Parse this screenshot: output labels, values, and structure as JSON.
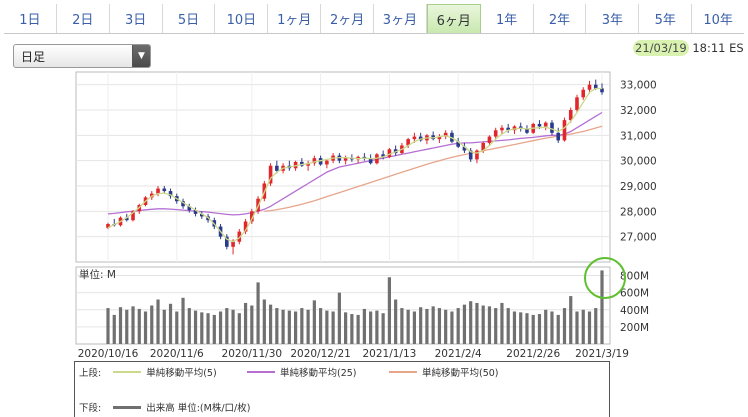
{
  "tabs": [
    "1日",
    "2日",
    "3日",
    "5日",
    "10日",
    "1ヶ月",
    "2ヶ月",
    "3ヶ月",
    "6ヶ月",
    "1年",
    "2年",
    "3年",
    "5年",
    "10年"
  ],
  "active_tab": "6ヶ月",
  "period_select": {
    "value": "日足"
  },
  "timestamp": {
    "date": "21/03/19",
    "time": "18:11 ES"
  },
  "colors": {
    "up": "#e0282c",
    "down": "#2a3a8c",
    "ma5": "#cdd98a",
    "ma25": "#b56fd3",
    "ma50": "#e7a58c",
    "volume": "#707070",
    "annotation": "#5fbf2f"
  },
  "legend": {
    "upper_label": "上段:",
    "lower_label": "下段:",
    "ma5": "単純移動平均(5)",
    "ma25": "単純移動平均(25)",
    "ma50": "単純移動平均(50)",
    "volume": "出来高 単位:(M株/口/枚)"
  },
  "chart_data": [
    {
      "type": "line",
      "subtype": "candlestick",
      "y_ticks": [
        "33,000",
        "32,000",
        "31,000",
        "30,000",
        "29,000",
        "28,000",
        "27,000"
      ],
      "ylim": [
        26000,
        33500
      ],
      "candles": [
        [
          27350,
          27550,
          27300,
          27500
        ],
        [
          27500,
          27700,
          27400,
          27450
        ],
        [
          27450,
          27800,
          27400,
          27750
        ],
        [
          27750,
          27900,
          27600,
          27650
        ],
        [
          27650,
          28050,
          27600,
          28000
        ],
        [
          28000,
          28300,
          27900,
          28250
        ],
        [
          28250,
          28600,
          28200,
          28550
        ],
        [
          28550,
          28800,
          28450,
          28700
        ],
        [
          28700,
          29000,
          28600,
          28900
        ],
        [
          28900,
          29000,
          28700,
          28800
        ],
        [
          28800,
          28900,
          28500,
          28600
        ],
        [
          28600,
          28700,
          28300,
          28400
        ],
        [
          28400,
          28500,
          28100,
          28200
        ],
        [
          28200,
          28300,
          27950,
          28050
        ],
        [
          28050,
          28150,
          27800,
          27900
        ],
        [
          27900,
          28000,
          27700,
          27800
        ],
        [
          27800,
          27900,
          27550,
          27650
        ],
        [
          27650,
          27750,
          27300,
          27400
        ],
        [
          27400,
          27500,
          26900,
          27000
        ],
        [
          27000,
          27100,
          26500,
          26600
        ],
        [
          26600,
          26900,
          26300,
          26800
        ],
        [
          26800,
          27300,
          26700,
          27200
        ],
        [
          27200,
          27700,
          27100,
          27600
        ],
        [
          27600,
          28100,
          27500,
          28000
        ],
        [
          28000,
          28600,
          27900,
          28500
        ],
        [
          28500,
          29200,
          28400,
          29100
        ],
        [
          29100,
          29900,
          29000,
          29800
        ],
        [
          29800,
          30000,
          29500,
          29600
        ],
        [
          29600,
          29900,
          29500,
          29800
        ],
        [
          29800,
          30000,
          29600,
          29700
        ],
        [
          29700,
          30000,
          29600,
          29950
        ],
        [
          29950,
          30100,
          29750,
          29800
        ],
        [
          29800,
          30000,
          29600,
          29900
        ],
        [
          29900,
          30200,
          29800,
          30100
        ],
        [
          30100,
          30200,
          29800,
          29850
        ],
        [
          29850,
          30050,
          29700,
          30000
        ],
        [
          30000,
          30300,
          29900,
          30200
        ],
        [
          30200,
          30300,
          29900,
          30000
        ],
        [
          30000,
          30200,
          29850,
          30100
        ],
        [
          30100,
          30250,
          29950,
          30050
        ],
        [
          30050,
          30200,
          29900,
          30150
        ],
        [
          30150,
          30300,
          30000,
          30100
        ],
        [
          30100,
          30250,
          29850,
          29900
        ],
        [
          29900,
          30300,
          29850,
          30250
        ],
        [
          30250,
          30400,
          30050,
          30150
        ],
        [
          30150,
          30500,
          30100,
          30450
        ],
        [
          30450,
          30600,
          30200,
          30300
        ],
        [
          30300,
          30700,
          30250,
          30600
        ],
        [
          30600,
          30900,
          30500,
          30850
        ],
        [
          30850,
          31100,
          30700,
          30950
        ],
        [
          30950,
          31100,
          30750,
          30800
        ],
        [
          30800,
          31050,
          30650,
          31000
        ],
        [
          31000,
          31150,
          30800,
          30850
        ],
        [
          30850,
          31050,
          30700,
          30950
        ],
        [
          30950,
          31200,
          30850,
          31100
        ],
        [
          31100,
          31200,
          30700,
          30750
        ],
        [
          30750,
          30900,
          30500,
          30550
        ],
        [
          30550,
          30700,
          30300,
          30400
        ],
        [
          30400,
          30500,
          29950,
          30050
        ],
        [
          30050,
          30450,
          29900,
          30400
        ],
        [
          30400,
          30750,
          30300,
          30700
        ],
        [
          30700,
          31000,
          30600,
          30950
        ],
        [
          30950,
          31300,
          30850,
          31200
        ],
        [
          31200,
          31400,
          31050,
          31300
        ],
        [
          31300,
          31450,
          31100,
          31200
        ],
        [
          31200,
          31400,
          31050,
          31350
        ],
        [
          31350,
          31500,
          31150,
          31250
        ],
        [
          31250,
          31400,
          31050,
          31100
        ],
        [
          31100,
          31500,
          31050,
          31450
        ],
        [
          31450,
          31600,
          31250,
          31350
        ],
        [
          31350,
          31550,
          31200,
          31500
        ],
        [
          31500,
          31600,
          31000,
          31100
        ],
        [
          31100,
          31300,
          30700,
          30800
        ],
        [
          30800,
          31700,
          30750,
          31600
        ],
        [
          31600,
          32100,
          31500,
          32000
        ],
        [
          32000,
          32600,
          31900,
          32500
        ],
        [
          32500,
          32900,
          32400,
          32800
        ],
        [
          32800,
          33150,
          32650,
          33000
        ],
        [
          33000,
          33200,
          32800,
          32850
        ],
        [
          32850,
          33050,
          32600,
          32700
        ]
      ],
      "ma5": [
        27350,
        27480,
        27600,
        27750,
        27950,
        28150,
        28400,
        28600,
        28700,
        28720,
        28650,
        28500,
        28350,
        28200,
        28050,
        27900,
        27750,
        27500,
        27200,
        26900,
        26800,
        26950,
        27250,
        27700,
        28200,
        28750,
        29300,
        29550,
        29700,
        29750,
        29800,
        29850,
        29880,
        29950,
        30000,
        30050,
        30100,
        30120,
        30120,
        30100,
        30080,
        30100,
        30080,
        30100,
        30150,
        30250,
        30350,
        30450,
        30600,
        30750,
        30850,
        30900,
        30900,
        30950,
        30980,
        30900,
        30750,
        30550,
        30350,
        30300,
        30400,
        30600,
        30850,
        31050,
        31200,
        31250,
        31280,
        31250,
        31280,
        31300,
        31320,
        31250,
        31150,
        31300,
        31550,
        31900,
        32300,
        32700,
        32850,
        32850
      ],
      "ma25": [
        27900,
        27920,
        27950,
        27980,
        28000,
        28030,
        28060,
        28080,
        28100,
        28100,
        28090,
        28070,
        28050,
        28030,
        28010,
        27990,
        27970,
        27940,
        27910,
        27880,
        27860,
        27870,
        27900,
        27950,
        28000,
        28080,
        28200,
        28350,
        28500,
        28650,
        28800,
        28950,
        29100,
        29250,
        29400,
        29550,
        29650,
        29750,
        29800,
        29850,
        29900,
        29950,
        30000,
        30050,
        30100,
        30150,
        30200,
        30250,
        30300,
        30350,
        30400,
        30450,
        30500,
        30550,
        30600,
        30650,
        30680,
        30700,
        30700,
        30720,
        30740,
        30760,
        30780,
        30800,
        30820,
        30850,
        30880,
        30900,
        30920,
        30950,
        30980,
        31000,
        31000,
        31050,
        31150,
        31300,
        31450,
        31600,
        31750,
        31900
      ],
      "ma50": [
        null,
        null,
        null,
        null,
        null,
        null,
        null,
        null,
        null,
        null,
        null,
        null,
        null,
        null,
        null,
        null,
        null,
        null,
        null,
        null,
        null,
        null,
        null,
        null,
        null,
        28000,
        28030,
        28070,
        28110,
        28160,
        28220,
        28280,
        28350,
        28420,
        28500,
        28580,
        28660,
        28740,
        28820,
        28900,
        28980,
        29060,
        29140,
        29220,
        29300,
        29380,
        29460,
        29540,
        29620,
        29700,
        29780,
        29860,
        29930,
        30000,
        30070,
        30130,
        30190,
        30240,
        30290,
        30340,
        30390,
        30440,
        30490,
        30540,
        30590,
        30640,
        30690,
        30740,
        30790,
        30840,
        30890,
        30930,
        30970,
        31010,
        31050,
        31100,
        31150,
        31220,
        31290,
        31360
      ]
    },
    {
      "type": "bar",
      "title": "単位: M",
      "y_ticks": [
        "800M",
        "600M",
        "400M",
        "200M"
      ],
      "ylim": [
        0,
        900
      ],
      "x_ticks": [
        "2020/10/16",
        "2020/11/6",
        "2020/11/30",
        "2020/12/21",
        "2021/1/13",
        "2021/2/4",
        "2021/2/26",
        "2021/3/19"
      ],
      "values": [
        420,
        340,
        430,
        400,
        440,
        410,
        380,
        450,
        520,
        400,
        470,
        380,
        540,
        420,
        390,
        370,
        360,
        340,
        380,
        420,
        400,
        360,
        480,
        450,
        720,
        520,
        460,
        420,
        400,
        390,
        380,
        420,
        400,
        510,
        420,
        390,
        380,
        600,
        370,
        350,
        340,
        410,
        380,
        390,
        360,
        780,
        520,
        420,
        400,
        380,
        430,
        410,
        440,
        420,
        400,
        380,
        420,
        460,
        500,
        480,
        450,
        440,
        420,
        480,
        420,
        380,
        370,
        360,
        340,
        350,
        400,
        380,
        340,
        420,
        560,
        380,
        400,
        380,
        420,
        860
      ]
    }
  ]
}
